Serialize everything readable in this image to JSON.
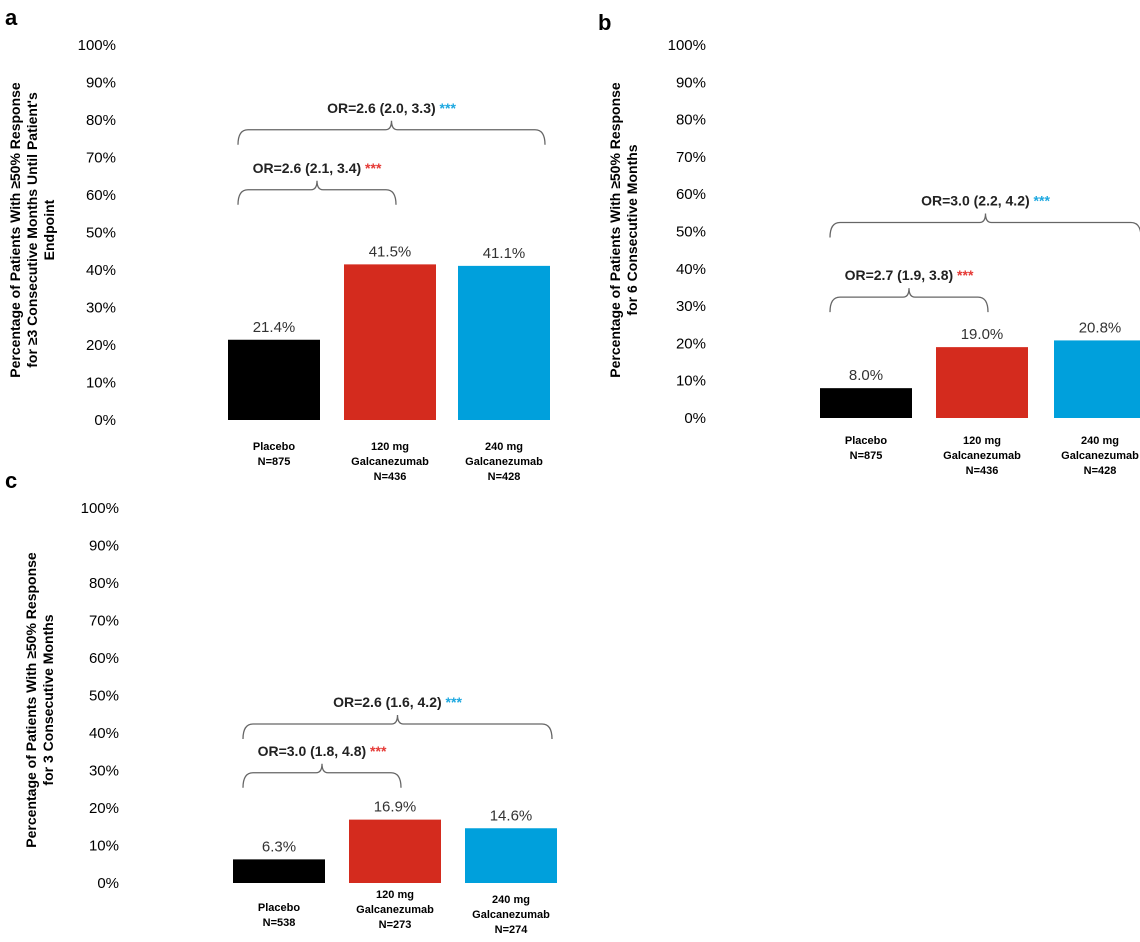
{
  "chart_data": [
    {
      "panel": "a",
      "type": "bar",
      "ylabel_lines": [
        "Percentage of Patients With ≥50% Response",
        "for ≥3 Consecutive Months Until Patient's",
        "Endpoint"
      ],
      "ylim": [
        0,
        100
      ],
      "yticks": [
        "0%",
        "10%",
        "20%",
        "30%",
        "40%",
        "50%",
        "60%",
        "70%",
        "80%",
        "90%",
        "100%"
      ],
      "categories": [
        [
          "Placebo",
          "N=875"
        ],
        [
          "120 mg",
          "Galcanezumab",
          "N=436"
        ],
        [
          "240 mg",
          "Galcanezumab",
          "N=428"
        ]
      ],
      "values": [
        21.4,
        41.5,
        41.1
      ],
      "value_labels": [
        "21.4%",
        "41.5%",
        "41.1%"
      ],
      "colors": [
        "#000000",
        "#d42b1e",
        "#00a0dc"
      ],
      "annotations": [
        {
          "text": "OR=2.6 (2.1, 3.4)",
          "stars": "***",
          "star_color": "#e53935",
          "from": 0,
          "to": 1,
          "level": 59
        },
        {
          "text": "OR=2.6 (2.0, 3.3)",
          "stars": "***",
          "star_color": "#1da8e0",
          "from": 0,
          "to": 2,
          "level": 75
        }
      ]
    },
    {
      "panel": "b",
      "type": "bar",
      "ylabel_lines": [
        "Percentage of Patients With ≥50% Response",
        "for 6 Consecutive Months"
      ],
      "ylim": [
        0,
        100
      ],
      "yticks": [
        "0%",
        "10%",
        "20%",
        "30%",
        "40%",
        "50%",
        "60%",
        "70%",
        "80%",
        "90%",
        "100%"
      ],
      "categories": [
        [
          "Placebo",
          "N=875"
        ],
        [
          "120 mg",
          "Galcanezumab",
          "N=436"
        ],
        [
          "240 mg",
          "Galcanezumab",
          "N=428"
        ]
      ],
      "values": [
        8.0,
        19.0,
        20.8
      ],
      "value_labels": [
        "8.0%",
        "19.0%",
        "20.8%"
      ],
      "colors": [
        "#000000",
        "#d42b1e",
        "#00a0dc"
      ],
      "annotations": [
        {
          "text": "OR=2.7 (1.9, 3.8)",
          "stars": "***",
          "star_color": "#e53935",
          "from": 0,
          "to": 1,
          "level": 30
        },
        {
          "text": "OR=3.0 (2.2, 4.2)",
          "stars": "***",
          "star_color": "#1da8e0",
          "from": 0,
          "to": 2,
          "level": 50
        }
      ]
    },
    {
      "panel": "c",
      "type": "bar",
      "ylabel_lines": [
        "Percentage of Patients With ≥50% Response",
        "for 3 Consecutive Months"
      ],
      "ylim": [
        0,
        100
      ],
      "yticks": [
        "0%",
        "10%",
        "20%",
        "30%",
        "40%",
        "50%",
        "60%",
        "70%",
        "80%",
        "90%",
        "100%"
      ],
      "categories": [
        [
          "Placebo",
          "N=538"
        ],
        [
          "120 mg",
          "Galcanezumab",
          "N=273"
        ],
        [
          "240 mg",
          "Galcanezumab",
          "N=274"
        ]
      ],
      "values": [
        6.3,
        16.9,
        14.6
      ],
      "value_labels": [
        "6.3%",
        "16.9%",
        "14.6%"
      ],
      "colors": [
        "#000000",
        "#d42b1e",
        "#00a0dc"
      ],
      "annotations": [
        {
          "text": "OR=3.0 (1.8, 4.8)",
          "stars": "***",
          "star_color": "#e53935",
          "from": 0,
          "to": 1,
          "level": 27
        },
        {
          "text": "OR=2.6 (1.6, 4.2)",
          "stars": "***",
          "star_color": "#1da8e0",
          "from": 0,
          "to": 2,
          "level": 40
        }
      ]
    }
  ]
}
